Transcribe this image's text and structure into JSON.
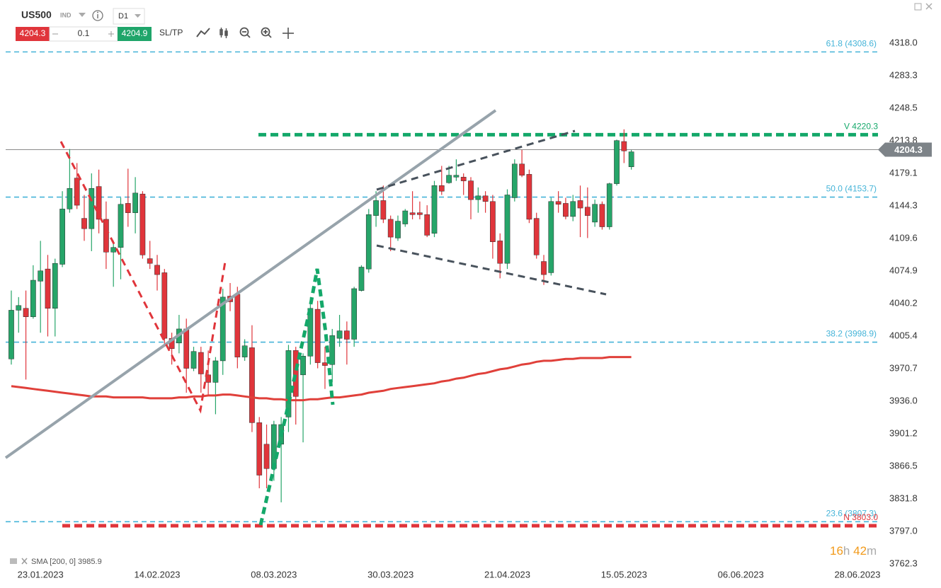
{
  "toolbar": {
    "symbol": "US500",
    "market": "IND",
    "timeframe": "D1",
    "sell": 4204.3,
    "quantity": 0.1,
    "buy": 4204.9,
    "sltp": "SL/TP"
  },
  "timer": [
    "16",
    "h",
    "42",
    "m"
  ],
  "chart_data": {
    "type": "candlestick",
    "up_color": "#26a569",
    "down_color": "#e0353b",
    "ylim": [
      3760,
      4364
    ],
    "xlim": [
      -1.55,
      119.3
    ],
    "yticks": [
      {
        "value": 4318,
        "label": "4318.0"
      },
      4283.3,
      4248.5,
      4213.8,
      4179.1,
      4144.3,
      4109.6,
      4074.9,
      4040.2,
      4005.4,
      3970.7,
      {
        "value": 3936,
        "label": "3936.0"
      },
      3901.2,
      3866.5,
      3831.8,
      {
        "value": 3797,
        "label": "3797.0"
      },
      3762.3
    ],
    "xticks": [
      {
        "value": 4,
        "label": "23.01.2023"
      },
      {
        "value": 20,
        "label": "14.02.2023"
      },
      {
        "value": 36,
        "label": "08.03.2023"
      },
      {
        "value": 52,
        "label": "30.03.2023"
      },
      {
        "value": 68,
        "label": "21.04.2023"
      },
      {
        "value": 84,
        "label": "15.05.2023"
      },
      {
        "value": 100,
        "label": "06.06.2023"
      },
      {
        "value": 116,
        "label": "28.06.2023"
      }
    ],
    "last_price": 4204.3,
    "fib_color": "#45b4d8",
    "fib_levels": [
      {
        "label": "61.8 (4308.6)",
        "value": 4308.6
      },
      {
        "label": "50.0 (4153.7)",
        "value": 4153.7
      },
      {
        "label": "38.2 (3998.9)",
        "value": 3998.9
      },
      {
        "label": "23.6 (3807.3)",
        "value": 3807.3
      }
    ],
    "levels": [
      {
        "label": "V 4220.3",
        "value": 4220.3,
        "color": "#14a86a"
      },
      {
        "label": "N 3803.0",
        "value": 3803.0,
        "color": "#e0353b"
      }
    ],
    "sma": {
      "label": "SMA [200, 0]",
      "last": 3985.9,
      "color": "#e0403a",
      "values": [
        3952,
        3951,
        3950,
        3949,
        3948,
        3947,
        3946,
        3945,
        3944,
        3943,
        3942,
        3941,
        3941,
        3941,
        3940,
        3940,
        3940,
        3940,
        3940,
        3939,
        3939,
        3939,
        3939,
        3940,
        3940,
        3941,
        3941,
        3942,
        3942,
        3943,
        3943,
        3942,
        3941,
        3940,
        3939,
        3939,
        3938,
        3938,
        3937,
        3937,
        3937,
        3938,
        3938,
        3939,
        3940,
        3940,
        3941,
        3942,
        3943,
        3945,
        3946,
        3947,
        3949,
        3950,
        3951,
        3952,
        3953,
        3954,
        3955,
        3957,
        3958,
        3960,
        3961,
        3963,
        3965,
        3966,
        3968,
        3970,
        3971,
        3973,
        3975,
        3976,
        3978,
        3979,
        3979,
        3980,
        3981,
        3981,
        3982,
        3982,
        3982,
        3982,
        3983,
        3983,
        3983,
        3983
      ]
    },
    "ohlc": [
      [
        3981,
        4054,
        3975,
        4033
      ],
      [
        4033,
        4047,
        4009,
        4038
      ],
      [
        4035,
        4054,
        3959,
        4026
      ],
      [
        4026,
        4081,
        4024,
        4065
      ],
      [
        4064,
        4107,
        4009,
        4075
      ],
      [
        4077,
        4092,
        4005,
        4035
      ],
      [
        4035,
        4088,
        4005,
        4083
      ],
      [
        4082,
        4160,
        4079,
        4141
      ],
      [
        4141,
        4205,
        4137,
        4163
      ],
      [
        4174,
        4190,
        4141,
        4145
      ],
      [
        4131,
        4156,
        4107,
        4120
      ],
      [
        4120,
        4179,
        4096,
        4163
      ],
      [
        4165,
        4183,
        4115,
        4130
      ],
      [
        4130,
        4149,
        4077,
        4095
      ],
      [
        4095,
        4107,
        4058,
        4100
      ],
      [
        4100,
        4153,
        4066,
        4146
      ],
      [
        4147,
        4184,
        4122,
        4137
      ],
      [
        4137,
        4175,
        4115,
        4158
      ],
      [
        4157,
        4160,
        4088,
        4092
      ],
      [
        4088,
        4107,
        4077,
        4083
      ],
      [
        4081,
        4092,
        4054,
        4071
      ],
      [
        4073,
        4077,
        3994,
        4003
      ],
      [
        4003,
        4009,
        3975,
        3992
      ],
      [
        3998,
        4028,
        3987,
        4013
      ],
      [
        4013,
        4024,
        3945,
        3971
      ],
      [
        3971,
        3994,
        3968,
        3989
      ],
      [
        3988,
        3994,
        3945,
        3965
      ],
      [
        3964,
        3990,
        3943,
        3956
      ],
      [
        3956,
        3983,
        3922,
        3979
      ],
      [
        3979,
        4056,
        3964,
        4047
      ],
      [
        4048,
        4062,
        4032,
        4042
      ],
      [
        4050,
        4058,
        3971,
        3983
      ],
      [
        3983,
        4002,
        3979,
        3995
      ],
      [
        3993,
        4017,
        3903,
        3913
      ],
      [
        3913,
        3919,
        3843,
        3857
      ],
      [
        3890,
        3911,
        3843,
        3864
      ],
      [
        3864,
        3915,
        3851,
        3911
      ],
      [
        3890,
        3919,
        3828,
        3911
      ],
      [
        3919,
        3996,
        3903,
        3990
      ],
      [
        3990,
        3994,
        3911,
        3941
      ],
      [
        3964,
        3987,
        3892,
        3984
      ],
      [
        3984,
        4047,
        3975,
        4035
      ],
      [
        4034,
        4043,
        3971,
        3977
      ],
      [
        3977,
        3994,
        3949,
        3974
      ],
      [
        3975,
        4013,
        3956,
        4006
      ],
      [
        4003,
        4028,
        3994,
        4011
      ],
      [
        4011,
        4021,
        3975,
        4002
      ],
      [
        4002,
        4058,
        3994,
        4056
      ],
      [
        4054,
        4081,
        4053,
        4079
      ],
      [
        4077,
        4141,
        4073,
        4135
      ],
      [
        4134,
        4160,
        4122,
        4150
      ],
      [
        4150,
        4166,
        4126,
        4130
      ],
      [
        4130,
        4134,
        4096,
        4111
      ],
      [
        4110,
        4134,
        4107,
        4128
      ],
      [
        4125,
        4141,
        4122,
        4139
      ],
      [
        4137,
        4160,
        4130,
        4135
      ],
      [
        4137,
        4149,
        4130,
        4135
      ],
      [
        4135,
        4145,
        4111,
        4113
      ],
      [
        4115,
        4171,
        4111,
        4166
      ],
      [
        4166,
        4187,
        4156,
        4160
      ],
      [
        4169,
        4187,
        4168,
        4177
      ],
      [
        4175,
        4194,
        4171,
        4177
      ],
      [
        4175,
        4179,
        4156,
        4171
      ],
      [
        4171,
        4175,
        4130,
        4151
      ],
      [
        4151,
        4164,
        4137,
        4155
      ],
      [
        4155,
        4160,
        4137,
        4149
      ],
      [
        4149,
        4156,
        4088,
        4106
      ],
      [
        4107,
        4115,
        4067,
        4083
      ],
      [
        4083,
        4162,
        4077,
        4156
      ],
      [
        4153,
        4194,
        4149,
        4189
      ],
      [
        4189,
        4204,
        4175,
        4177
      ],
      [
        4178,
        4183,
        4126,
        4130
      ],
      [
        4131,
        4137,
        4088,
        4092
      ],
      [
        4085,
        4092,
        4060,
        4071
      ],
      [
        4073,
        4153,
        4070,
        4149
      ],
      [
        4149,
        4160,
        4137,
        4146
      ],
      [
        4147,
        4153,
        4130,
        4133
      ],
      [
        4133,
        4156,
        4128,
        4149
      ],
      [
        4150,
        4166,
        4111,
        4142
      ],
      [
        4143,
        4164,
        4110,
        4134
      ],
      [
        4127,
        4151,
        4122,
        4146
      ],
      [
        4146,
        4149,
        4119,
        4122
      ],
      [
        4122,
        4169,
        4119,
        4168
      ],
      [
        4168,
        4215,
        4166,
        4214
      ],
      [
        4213,
        4226,
        4190,
        4203
      ],
      [
        4186,
        4204,
        4183,
        4202
      ]
    ]
  }
}
